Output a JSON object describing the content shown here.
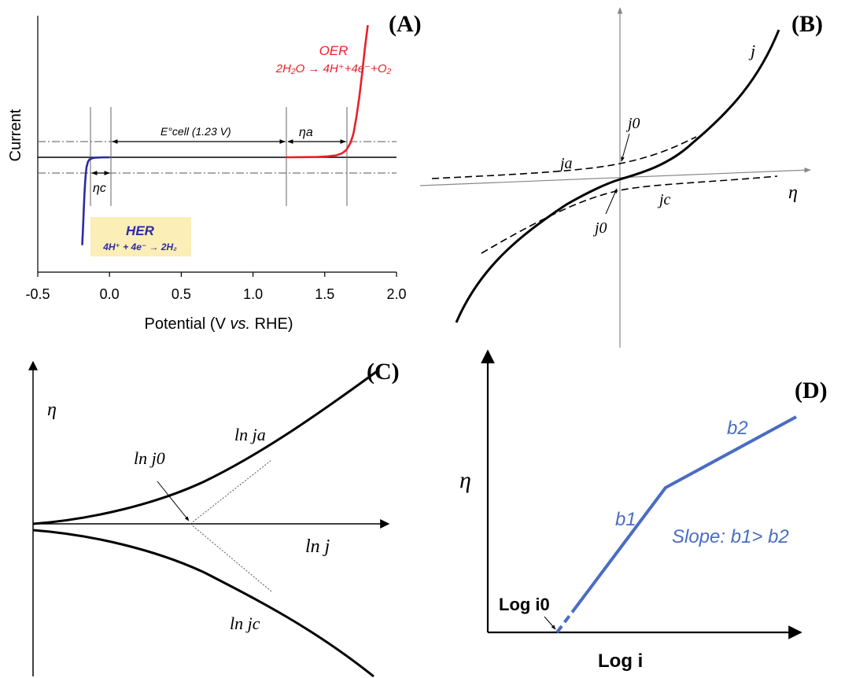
{
  "chart_data": [
    {
      "panel": "(A)",
      "type": "line",
      "xlabel": "Potential (V vs. RHE)",
      "xlabel_parts": [
        "Potential (V ",
        "vs.",
        " RHE)"
      ],
      "ylabel": "Current",
      "xlim": [
        -0.5,
        2.0
      ],
      "ylim": [
        -1.0,
        1.0
      ],
      "x_ticks": [
        "-0.5",
        "0.0",
        "0.5",
        "1.0",
        "1.5",
        "2.0"
      ],
      "x_tick_values": [
        -0.5,
        0.0,
        0.5,
        1.0,
        1.5,
        2.0
      ],
      "series": [
        {
          "name": "HER",
          "color": "#2b2ba6",
          "x": [
            -0.19,
            -0.185,
            -0.18,
            -0.175,
            -0.17,
            -0.165,
            -0.16,
            -0.15,
            -0.14,
            -0.12,
            -0.1,
            -0.05,
            0.0
          ],
          "y": [
            -0.98,
            -0.8,
            -0.6,
            -0.42,
            -0.28,
            -0.18,
            -0.11,
            -0.05,
            -0.025,
            -0.01,
            -0.004,
            -0.001,
            0.0
          ]
        },
        {
          "name": "OER",
          "color": "#e8202a",
          "x": [
            1.23,
            1.35,
            1.45,
            1.52,
            1.58,
            1.62,
            1.65,
            1.68,
            1.7,
            1.72,
            1.74,
            1.76,
            1.78,
            1.8
          ],
          "y": [
            0.0,
            0.001,
            0.003,
            0.007,
            0.015,
            0.03,
            0.055,
            0.11,
            0.18,
            0.3,
            0.45,
            0.63,
            0.83,
            1.0
          ]
        }
      ],
      "annotations": {
        "oer_title": "OER",
        "oer_equation": "2H₂O → 4H⁺+4e⁻+O₂",
        "her_title": "HER",
        "her_equation": "4H⁺ + 4e⁻ → 2H₂",
        "ecell_label": "E°cell (1.23 V)",
        "eta_a": "ηa",
        "eta_c": "ηc"
      }
    },
    {
      "panel": "(B)",
      "type": "line",
      "xlabel": "η",
      "labels": {
        "j": "j",
        "ja": "ja",
        "jc": "jc",
        "j0_top": "j0",
        "j0_bottom": "j0"
      }
    },
    {
      "panel": "(C)",
      "type": "line",
      "xlabel": "ln j",
      "ylabel": "η",
      "labels": {
        "ln_ja": "ln ja",
        "ln_jc": "ln jc",
        "ln_j0": "ln j0"
      }
    },
    {
      "panel": "(D)",
      "type": "line",
      "xlabel": "Log i",
      "ylabel": "η",
      "labels": {
        "log_i0": "Log i0",
        "b1": "b1",
        "b2": "b2",
        "slope": "Slope: b1> b2"
      },
      "line_color": "#4a6cc4"
    }
  ]
}
